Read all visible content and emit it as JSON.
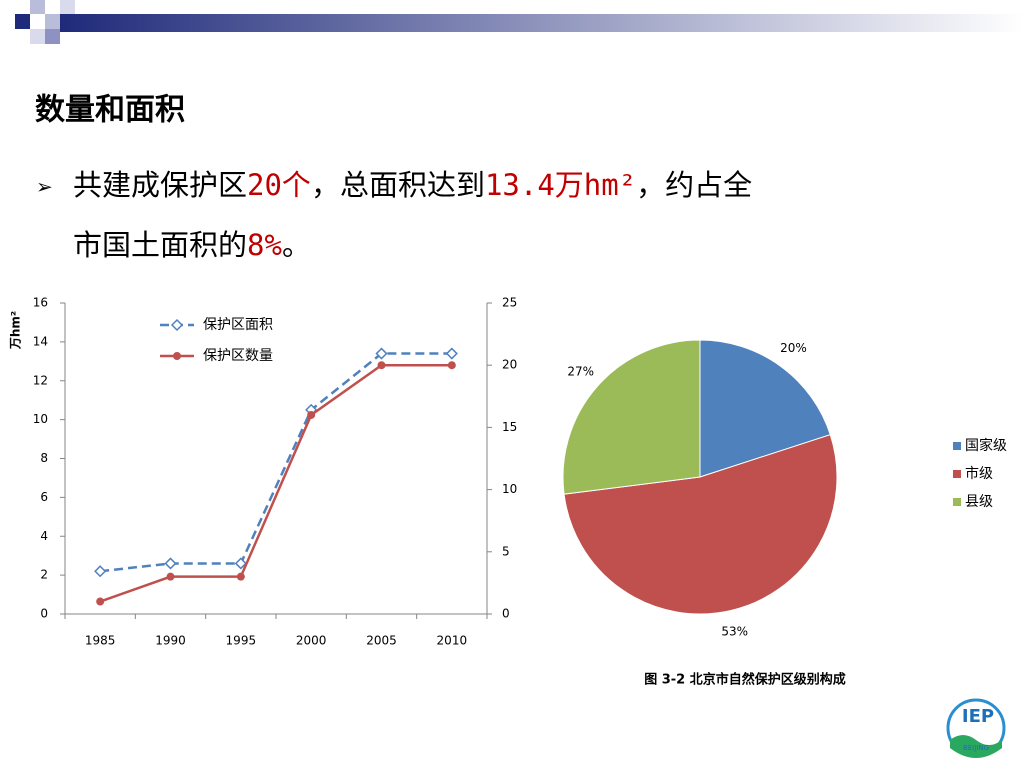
{
  "slide": {
    "title": "数量和面积",
    "bullet": [
      "共建成保护区",
      "20个",
      "，总面积达到",
      "13.4万hm²",
      "，约占全"
    ],
    "bullet_line2": [
      "市国土面积的",
      "8%",
      "。"
    ],
    "logo": "IEP",
    "logo_sub": "BEIJING"
  },
  "chart_data": [
    {
      "type": "line",
      "ylabel": "万hm²",
      "categories": [
        "1985",
        "1990",
        "1995",
        "2000",
        "2005",
        "2010"
      ],
      "series": [
        {
          "name": "保护区面积",
          "color": "#4f81bd",
          "linestyle": "dashed",
          "marker": "diamond",
          "values": [
            2.2,
            2.6,
            2.6,
            10.5,
            13.4,
            13.4
          ]
        },
        {
          "name": "保护区数量",
          "color": "#c0504d",
          "linestyle": "solid",
          "marker": "circle",
          "axis": "y2",
          "values": [
            1,
            3,
            3,
            16,
            20,
            20
          ]
        }
      ],
      "ylim": [
        0,
        16
      ],
      "yticks": [
        0,
        2,
        4,
        6,
        8,
        10,
        12,
        14,
        16
      ],
      "y2lim": [
        0,
        25
      ],
      "y2ticks": [
        0,
        5,
        10,
        15,
        20,
        25
      ]
    },
    {
      "type": "pie",
      "caption": "图 3-2  北京市自然保护区级别构成",
      "categories": [
        "国家级",
        "市级",
        "县级"
      ],
      "values": [
        20,
        53,
        27
      ],
      "value_labels": [
        "20%",
        "53%",
        "27%"
      ],
      "colors": [
        "#4f81bd",
        "#c0504d",
        "#9bbb59"
      ]
    }
  ]
}
